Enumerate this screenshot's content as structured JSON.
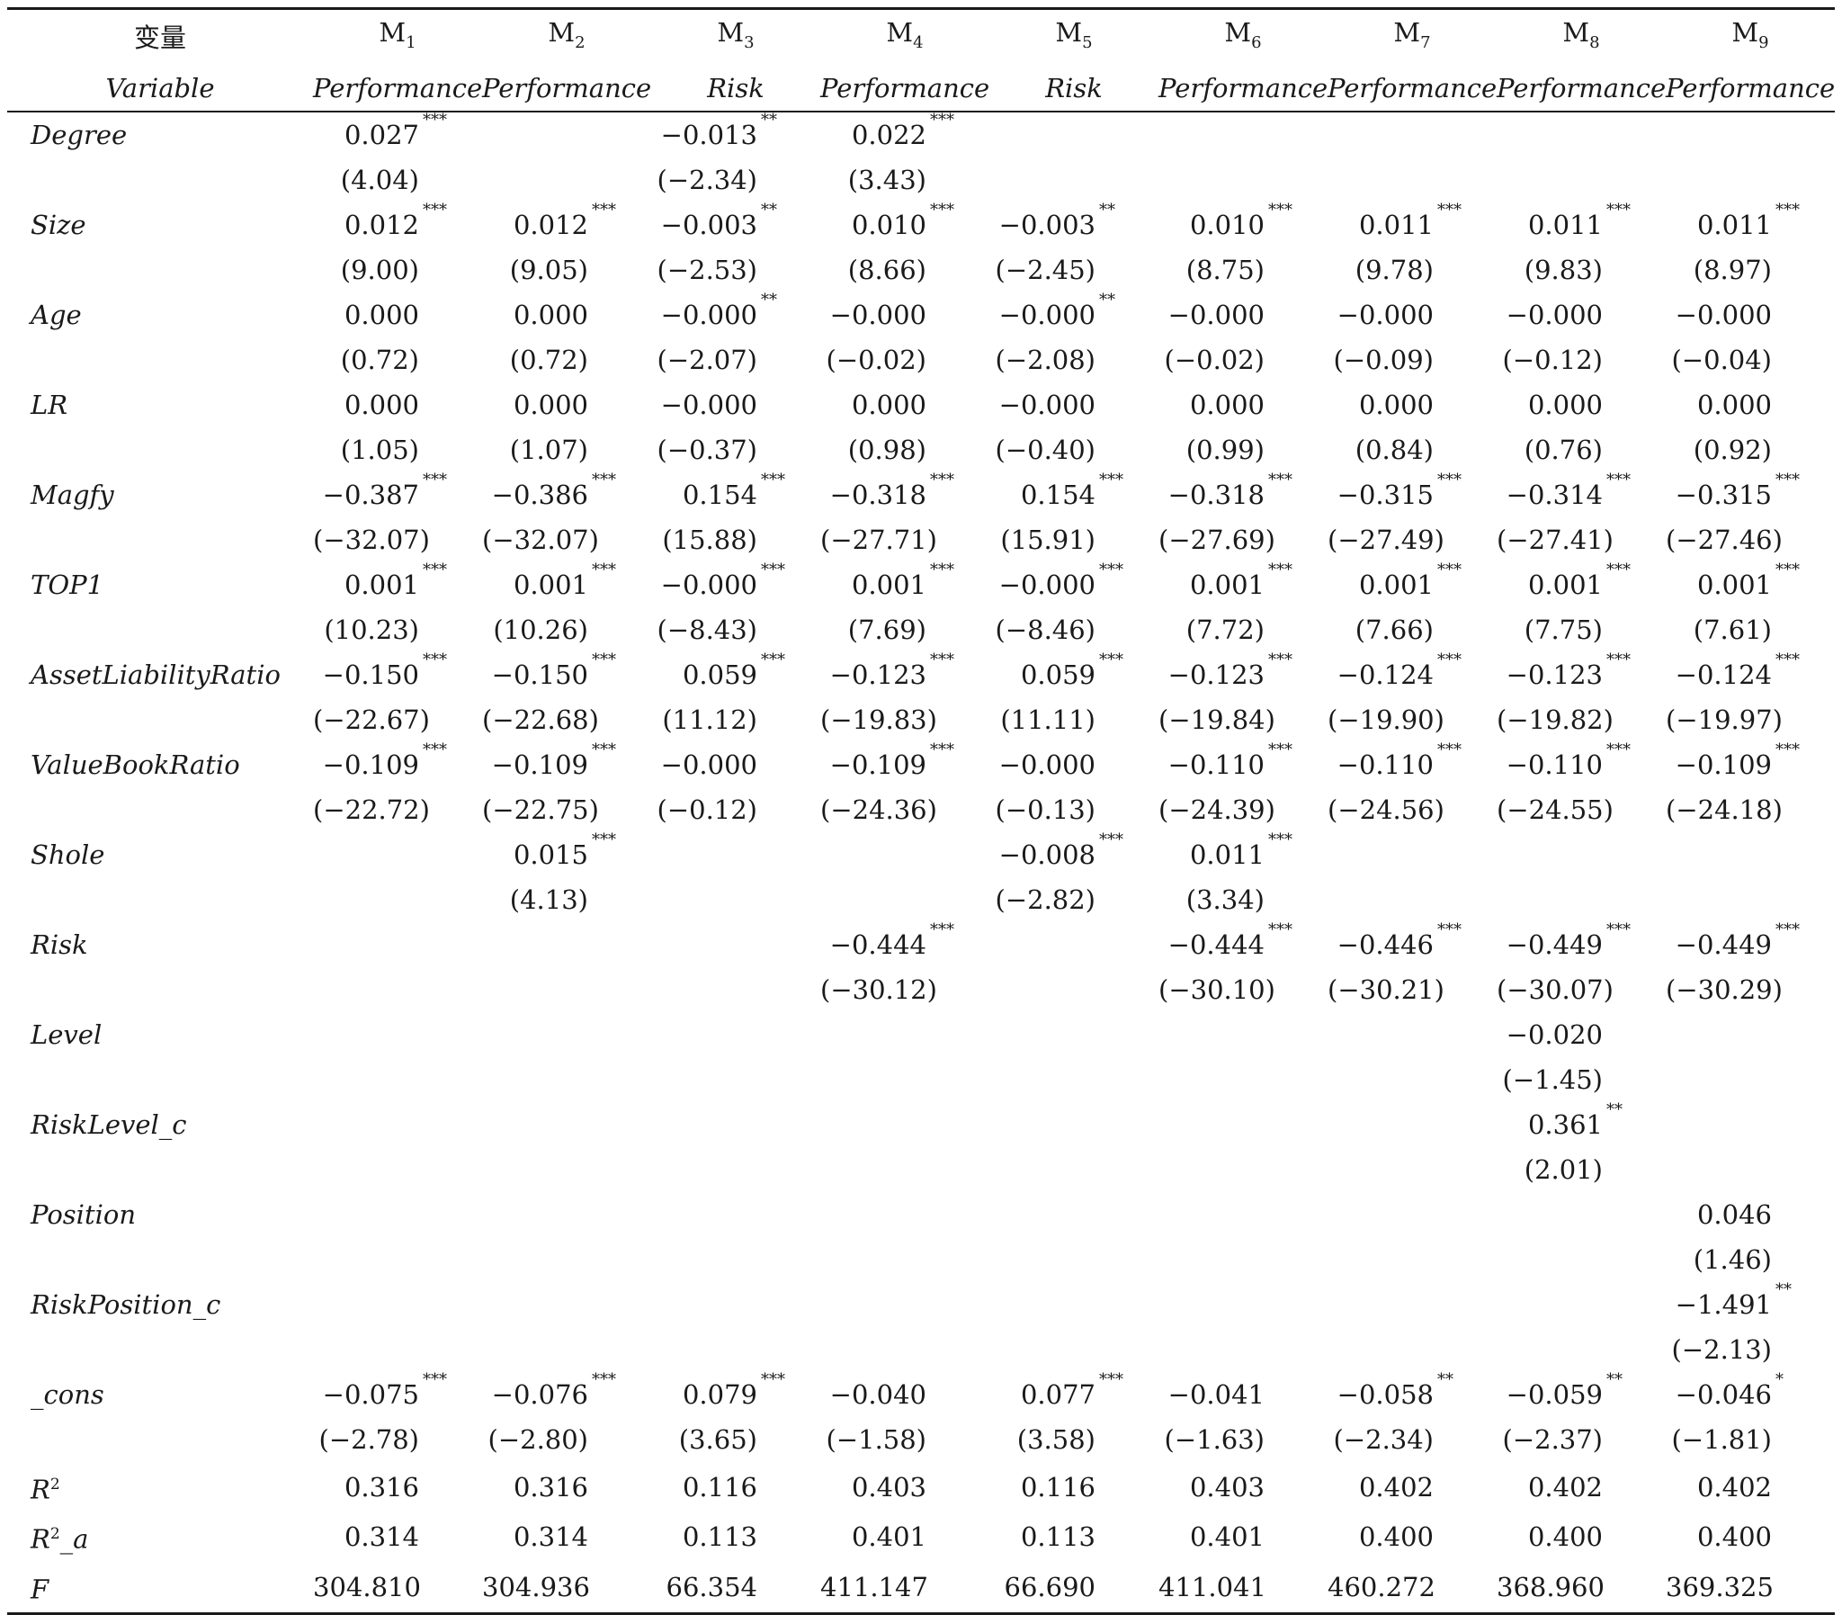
{
  "header": {
    "var_cn": "变量",
    "var_en": "Variable",
    "models": [
      {
        "m": "M",
        "sub": "1",
        "dv": "Performance"
      },
      {
        "m": "M",
        "sub": "2",
        "dv": "Performance"
      },
      {
        "m": "M",
        "sub": "3",
        "dv": "Risk"
      },
      {
        "m": "M",
        "sub": "4",
        "dv": "Performance"
      },
      {
        "m": "M",
        "sub": "5",
        "dv": "Risk"
      },
      {
        "m": "M",
        "sub": "6",
        "dv": "Performance"
      },
      {
        "m": "M",
        "sub": "7",
        "dv": "Performance"
      },
      {
        "m": "M",
        "sub": "8",
        "dv": "Performance"
      },
      {
        "m": "M",
        "sub": "9",
        "dv": "Performance"
      }
    ]
  },
  "rows": [
    {
      "name": "Degree",
      "cells": [
        {
          "coef": "0.027",
          "star": "***",
          "t": "(4.04)"
        },
        {
          "coef": "",
          "star": "",
          "t": ""
        },
        {
          "coef": "−0.013",
          "star": "**",
          "t": "(−2.34)"
        },
        {
          "coef": "0.022",
          "star": "***",
          "t": "(3.43)"
        },
        {
          "coef": "",
          "star": "",
          "t": ""
        },
        {
          "coef": "",
          "star": "",
          "t": ""
        },
        {
          "coef": "",
          "star": "",
          "t": ""
        },
        {
          "coef": "",
          "star": "",
          "t": ""
        },
        {
          "coef": "",
          "star": "",
          "t": ""
        }
      ]
    },
    {
      "name": "Size",
      "cells": [
        {
          "coef": "0.012",
          "star": "***",
          "t": "(9.00)"
        },
        {
          "coef": "0.012",
          "star": "***",
          "t": "(9.05)"
        },
        {
          "coef": "−0.003",
          "star": "**",
          "t": "(−2.53)"
        },
        {
          "coef": "0.010",
          "star": "***",
          "t": "(8.66)"
        },
        {
          "coef": "−0.003",
          "star": "**",
          "t": "(−2.45)"
        },
        {
          "coef": "0.010",
          "star": "***",
          "t": "(8.75)"
        },
        {
          "coef": "0.011",
          "star": "***",
          "t": "(9.78)"
        },
        {
          "coef": "0.011",
          "star": "***",
          "t": "(9.83)"
        },
        {
          "coef": "0.011",
          "star": "***",
          "t": "(8.97)"
        }
      ]
    },
    {
      "name": "Age",
      "cells": [
        {
          "coef": "0.000",
          "star": "",
          "t": "(0.72)"
        },
        {
          "coef": "0.000",
          "star": "",
          "t": "(0.72)"
        },
        {
          "coef": "−0.000",
          "star": "**",
          "t": "(−2.07)"
        },
        {
          "coef": "−0.000",
          "star": "",
          "t": "(−0.02)"
        },
        {
          "coef": "−0.000",
          "star": "**",
          "t": "(−2.08)"
        },
        {
          "coef": "−0.000",
          "star": "",
          "t": "(−0.02)"
        },
        {
          "coef": "−0.000",
          "star": "",
          "t": "(−0.09)"
        },
        {
          "coef": "−0.000",
          "star": "",
          "t": "(−0.12)"
        },
        {
          "coef": "−0.000",
          "star": "",
          "t": "(−0.04)"
        }
      ]
    },
    {
      "name": "LR",
      "cells": [
        {
          "coef": "0.000",
          "star": "",
          "t": "(1.05)"
        },
        {
          "coef": "0.000",
          "star": "",
          "t": "(1.07)"
        },
        {
          "coef": "−0.000",
          "star": "",
          "t": "(−0.37)"
        },
        {
          "coef": "0.000",
          "star": "",
          "t": "(0.98)"
        },
        {
          "coef": "−0.000",
          "star": "",
          "t": "(−0.40)"
        },
        {
          "coef": "0.000",
          "star": "",
          "t": "(0.99)"
        },
        {
          "coef": "0.000",
          "star": "",
          "t": "(0.84)"
        },
        {
          "coef": "0.000",
          "star": "",
          "t": "(0.76)"
        },
        {
          "coef": "0.000",
          "star": "",
          "t": "(0.92)"
        }
      ]
    },
    {
      "name": "Magfy",
      "cells": [
        {
          "coef": "−0.387",
          "star": "***",
          "t": "(−32.07)"
        },
        {
          "coef": "−0.386",
          "star": "***",
          "t": "(−32.07)"
        },
        {
          "coef": "0.154",
          "star": "***",
          "t": "(15.88)"
        },
        {
          "coef": "−0.318",
          "star": "***",
          "t": "(−27.71)"
        },
        {
          "coef": "0.154",
          "star": "***",
          "t": "(15.91)"
        },
        {
          "coef": "−0.318",
          "star": "***",
          "t": "(−27.69)"
        },
        {
          "coef": "−0.315",
          "star": "***",
          "t": "(−27.49)"
        },
        {
          "coef": "−0.314",
          "star": "***",
          "t": "(−27.41)"
        },
        {
          "coef": "−0.315",
          "star": "***",
          "t": "(−27.46)"
        }
      ]
    },
    {
      "name": "TOP1",
      "cells": [
        {
          "coef": "0.001",
          "star": "***",
          "t": "(10.23)"
        },
        {
          "coef": "0.001",
          "star": "***",
          "t": "(10.26)"
        },
        {
          "coef": "−0.000",
          "star": "***",
          "t": "(−8.43)"
        },
        {
          "coef": "0.001",
          "star": "***",
          "t": "(7.69)"
        },
        {
          "coef": "−0.000",
          "star": "***",
          "t": "(−8.46)"
        },
        {
          "coef": "0.001",
          "star": "***",
          "t": "(7.72)"
        },
        {
          "coef": "0.001",
          "star": "***",
          "t": "(7.66)"
        },
        {
          "coef": "0.001",
          "star": "***",
          "t": "(7.75)"
        },
        {
          "coef": "0.001",
          "star": "***",
          "t": "(7.61)"
        }
      ]
    },
    {
      "name": "AssetLiabilityRatio",
      "cells": [
        {
          "coef": "−0.150",
          "star": "***",
          "t": "(−22.67)"
        },
        {
          "coef": "−0.150",
          "star": "***",
          "t": "(−22.68)"
        },
        {
          "coef": "0.059",
          "star": "***",
          "t": "(11.12)"
        },
        {
          "coef": "−0.123",
          "star": "***",
          "t": "(−19.83)"
        },
        {
          "coef": "0.059",
          "star": "***",
          "t": "(11.11)"
        },
        {
          "coef": "−0.123",
          "star": "***",
          "t": "(−19.84)"
        },
        {
          "coef": "−0.124",
          "star": "***",
          "t": "(−19.90)"
        },
        {
          "coef": "−0.123",
          "star": "***",
          "t": "(−19.82)"
        },
        {
          "coef": "−0.124",
          "star": "***",
          "t": "(−19.97)"
        }
      ]
    },
    {
      "name": "ValueBookRatio",
      "cells": [
        {
          "coef": "−0.109",
          "star": "***",
          "t": "(−22.72)"
        },
        {
          "coef": "−0.109",
          "star": "***",
          "t": "(−22.75)"
        },
        {
          "coef": "−0.000",
          "star": "",
          "t": "(−0.12)"
        },
        {
          "coef": "−0.109",
          "star": "***",
          "t": "(−24.36)"
        },
        {
          "coef": "−0.000",
          "star": "",
          "t": "(−0.13)"
        },
        {
          "coef": "−0.110",
          "star": "***",
          "t": "(−24.39)"
        },
        {
          "coef": "−0.110",
          "star": "***",
          "t": "(−24.56)"
        },
        {
          "coef": "−0.110",
          "star": "***",
          "t": "(−24.55)"
        },
        {
          "coef": "−0.109",
          "star": "***",
          "t": "(−24.18)"
        }
      ]
    },
    {
      "name": "Shole",
      "cells": [
        {
          "coef": "",
          "star": "",
          "t": ""
        },
        {
          "coef": "0.015",
          "star": "***",
          "t": "(4.13)"
        },
        {
          "coef": "",
          "star": "",
          "t": ""
        },
        {
          "coef": "",
          "star": "",
          "t": ""
        },
        {
          "coef": "−0.008",
          "star": "***",
          "t": "(−2.82)"
        },
        {
          "coef": "0.011",
          "star": "***",
          "t": "(3.34)"
        },
        {
          "coef": "",
          "star": "",
          "t": ""
        },
        {
          "coef": "",
          "star": "",
          "t": ""
        },
        {
          "coef": "",
          "star": "",
          "t": ""
        }
      ]
    },
    {
      "name": "Risk",
      "cells": [
        {
          "coef": "",
          "star": "",
          "t": ""
        },
        {
          "coef": "",
          "star": "",
          "t": ""
        },
        {
          "coef": "",
          "star": "",
          "t": ""
        },
        {
          "coef": "−0.444",
          "star": "***",
          "t": "(−30.12)"
        },
        {
          "coef": "",
          "star": "",
          "t": ""
        },
        {
          "coef": "−0.444",
          "star": "***",
          "t": "(−30.10)"
        },
        {
          "coef": "−0.446",
          "star": "***",
          "t": "(−30.21)"
        },
        {
          "coef": "−0.449",
          "star": "***",
          "t": "(−30.07)"
        },
        {
          "coef": "−0.449",
          "star": "***",
          "t": "(−30.29)"
        }
      ]
    },
    {
      "name": "Level",
      "cells": [
        {
          "coef": "",
          "star": "",
          "t": ""
        },
        {
          "coef": "",
          "star": "",
          "t": ""
        },
        {
          "coef": "",
          "star": "",
          "t": ""
        },
        {
          "coef": "",
          "star": "",
          "t": ""
        },
        {
          "coef": "",
          "star": "",
          "t": ""
        },
        {
          "coef": "",
          "star": "",
          "t": ""
        },
        {
          "coef": "",
          "star": "",
          "t": ""
        },
        {
          "coef": "−0.020",
          "star": "",
          "t": "(−1.45)"
        },
        {
          "coef": "",
          "star": "",
          "t": ""
        }
      ]
    },
    {
      "name": "RiskLevel_c",
      "cells": [
        {
          "coef": "",
          "star": "",
          "t": ""
        },
        {
          "coef": "",
          "star": "",
          "t": ""
        },
        {
          "coef": "",
          "star": "",
          "t": ""
        },
        {
          "coef": "",
          "star": "",
          "t": ""
        },
        {
          "coef": "",
          "star": "",
          "t": ""
        },
        {
          "coef": "",
          "star": "",
          "t": ""
        },
        {
          "coef": "",
          "star": "",
          "t": ""
        },
        {
          "coef": "0.361",
          "star": "**",
          "t": "(2.01)"
        },
        {
          "coef": "",
          "star": "",
          "t": ""
        }
      ]
    },
    {
      "name": "Position",
      "cells": [
        {
          "coef": "",
          "star": "",
          "t": ""
        },
        {
          "coef": "",
          "star": "",
          "t": ""
        },
        {
          "coef": "",
          "star": "",
          "t": ""
        },
        {
          "coef": "",
          "star": "",
          "t": ""
        },
        {
          "coef": "",
          "star": "",
          "t": ""
        },
        {
          "coef": "",
          "star": "",
          "t": ""
        },
        {
          "coef": "",
          "star": "",
          "t": ""
        },
        {
          "coef": "",
          "star": "",
          "t": ""
        },
        {
          "coef": "0.046",
          "star": "",
          "t": "(1.46)"
        }
      ]
    },
    {
      "name": "RiskPosition_c",
      "cells": [
        {
          "coef": "",
          "star": "",
          "t": ""
        },
        {
          "coef": "",
          "star": "",
          "t": ""
        },
        {
          "coef": "",
          "star": "",
          "t": ""
        },
        {
          "coef": "",
          "star": "",
          "t": ""
        },
        {
          "coef": "",
          "star": "",
          "t": ""
        },
        {
          "coef": "",
          "star": "",
          "t": ""
        },
        {
          "coef": "",
          "star": "",
          "t": ""
        },
        {
          "coef": "",
          "star": "",
          "t": ""
        },
        {
          "coef": "−1.491",
          "star": "**",
          "t": "(−2.13)"
        }
      ]
    },
    {
      "name": "_cons",
      "cells": [
        {
          "coef": "−0.075",
          "star": "***",
          "t": "(−2.78)"
        },
        {
          "coef": "−0.076",
          "star": "***",
          "t": "(−2.80)"
        },
        {
          "coef": "0.079",
          "star": "***",
          "t": "(3.65)"
        },
        {
          "coef": "−0.040",
          "star": "",
          "t": "(−1.58)"
        },
        {
          "coef": "0.077",
          "star": "***",
          "t": "(3.58)"
        },
        {
          "coef": "−0.041",
          "star": "",
          "t": "(−1.63)"
        },
        {
          "coef": "−0.058",
          "star": "**",
          "t": "(−2.34)"
        },
        {
          "coef": "−0.059",
          "star": "**",
          "t": "(−2.37)"
        },
        {
          "coef": "−0.046",
          "star": "*",
          "t": "(−1.81)"
        }
      ]
    }
  ],
  "stats": [
    {
      "name": "R",
      "sup": "2",
      "suffix": "",
      "values": [
        "0.316",
        "0.316",
        "0.116",
        "0.403",
        "0.116",
        "0.403",
        "0.402",
        "0.402",
        "0.402"
      ]
    },
    {
      "name": "R",
      "sup": "2",
      "suffix": "_a",
      "values": [
        "0.314",
        "0.314",
        "0.113",
        "0.401",
        "0.113",
        "0.401",
        "0.400",
        "0.400",
        "0.400"
      ]
    },
    {
      "name": "F",
      "sup": "",
      "suffix": "",
      "values": [
        "304.810",
        "304.936",
        "66.354",
        "411.147",
        "66.690",
        "411.041",
        "460.272",
        "368.960",
        "369.325"
      ]
    }
  ]
}
